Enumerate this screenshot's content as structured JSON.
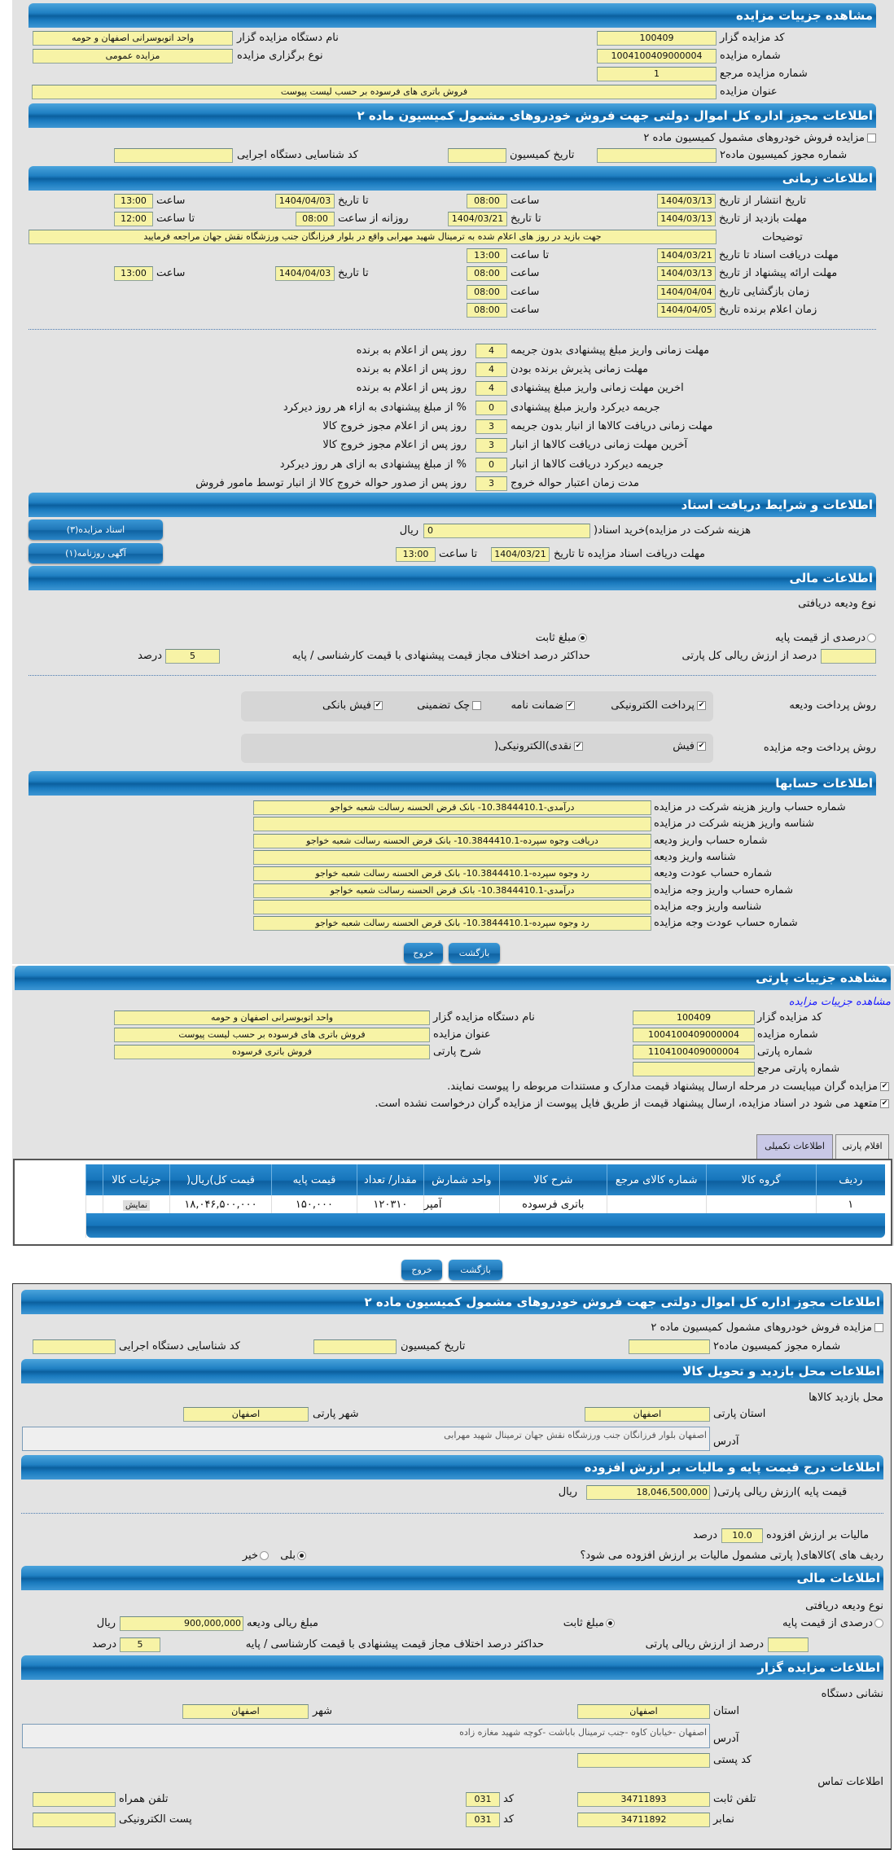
{
  "auction": {
    "title": "مشاهده جزییات مزایده",
    "code_label": "کد مزایده گزار",
    "code": "100409",
    "org_label": "نام دستگاه مزایده گزار",
    "org": "واحد اتوبوسرانی اصفهان و حومه",
    "number_label": "شماره مزایده",
    "number": "1004100409000004",
    "type_label": "نوع برگزاری مزایده",
    "type": "مزایده عمومی",
    "ref_label": "شماره مزایده مرجع",
    "ref": "1",
    "subject_label": "عنوان مزایده",
    "subject": "فروش باتری های فرسوده بر حسب لیست پیوست"
  },
  "permit": {
    "title": "اطلاعات مجوز اداره کل اموال دولتی جهت فروش خودروهای مشمول کمیسیون ماده ۲",
    "checkbox_label": "مزایده فروش خودروهای مشمول کمیسیون ماده ۲",
    "checked": false,
    "permit_no_label": "شماره مجوز کمیسیون ماده۲",
    "permit_no": "",
    "commission_date_label": "تاریخ کمیسیون",
    "commission_date": "",
    "exec_code_label": "کد شناسایی دستگاه اجرایی",
    "exec_code": ""
  },
  "timing": {
    "title": "اطلاعات زمانی",
    "publish": {
      "label": "تاریخ انتشار  از تاریخ",
      "from": "1404/03/13",
      "time_label": "ساعت",
      "from_time": "08:00",
      "to_label": "تا تاریخ",
      "to": "1404/04/03",
      "to_time_label": "ساعت",
      "to_time": "13:00"
    },
    "visit": {
      "label": "مهلت بازدید  از تاریخ",
      "from": "1404/03/13",
      "to_label": "تا تاریخ",
      "to": "1404/03/21",
      "daily_label": "روزانه از ساعت",
      "daily_from": "08:00",
      "until_label": "تا ساعت",
      "until": "12:00"
    },
    "desc_label": "توضیحات",
    "desc": "جهت بازید در روز های اعلام شده به ترمینال شهید مهرابی واقع در بلوار فرزانگان جنب ورزشگاه نقش جهان مراجعه فرمایید",
    "docs": {
      "label": "مهلت دریافت اسناد  تا تاریخ",
      "date": "1404/03/21",
      "time_label": "تا ساعت",
      "time": "13:00"
    },
    "offer": {
      "label": "مهلت ارائه پیشنهاد  از تاریخ",
      "from": "1404/03/13",
      "time_label": "ساعت",
      "from_time": "08:00",
      "to_label": "تا تاریخ",
      "to": "1404/04/03",
      "to_time_label": "ساعت",
      "to_time": "13:00"
    },
    "opening": {
      "label": "زمان بازگشایی    تاریخ",
      "date": "1404/04/04",
      "time_label": "ساعت",
      "time": "08:00"
    },
    "winner": {
      "label": "زمان اعلام برنده    تاریخ",
      "date": "1404/04/05",
      "time_label": "ساعت",
      "time": "08:00"
    }
  },
  "deadlines": [
    {
      "label": "مهلت زمانی واریز مبلغ پیشنهادی بدون جریمه",
      "value": "4",
      "suffix": "روز پس از اعلام به برنده"
    },
    {
      "label": "مهلت زمانی پذیرش برنده بودن",
      "value": "4",
      "suffix": "روز پس از اعلام به برنده"
    },
    {
      "label": "اخرین مهلت زمانی واریز مبلغ پیشنهادی",
      "value": "4",
      "suffix": "روز پس از اعلام به برنده"
    },
    {
      "label": "جریمه دیرکرد واریز مبلغ پیشنهادی",
      "value": "0",
      "suffix": "% از مبلغ پیشنهادی به ازاء هر روز دیرکرد"
    },
    {
      "label": "مهلت زمانی دریافت کالاها از انبار بدون جریمه",
      "value": "3",
      "suffix": "روز پس از اعلام مجوز خروج کالا"
    },
    {
      "label": "آخرین مهلت زمانی دریافت کالاها از انبار",
      "value": "3",
      "suffix": "روز پس از اعلام مجوز خروج کالا"
    },
    {
      "label": "جریمه دیرکرد دریافت کالاها از انبار",
      "value": "0",
      "suffix": "% از مبلغ پیشنهادی به ازای هر روز دیرکرد"
    },
    {
      "label": "مدت زمان اعتبار حواله خروج",
      "value": "3",
      "suffix": "روز پس از صدور حواله خروج کالا از انبار توسط مامور فروش"
    }
  ],
  "documents": {
    "title": "اطلاعات و شرایط دریافت اسناد",
    "fee_label": "هزینه شرکت در مزایده)خرید اسناد(",
    "fee": "0",
    "currency": "ریال",
    "deadline_label": "مهلت دریافت اسناد مزایده تا تاریخ",
    "deadline_date": "1404/03/21",
    "time_label": "تا ساعت",
    "deadline_time": "13:00",
    "docs_button": "اسناد مزایده(۳)",
    "ad_button": "آگهی روزنامه(۱)"
  },
  "finance": {
    "title": "اطلاعات مالی",
    "deposit_type_label": "نوع ودیعه دریافتی",
    "percent_option": "درصدی از قیمت پایه",
    "fixed_option": "مبلغ ثابت",
    "selected": "fixed",
    "percent_value": "",
    "percent_suffix": "درصد از ارزش ریالی کل پارتی",
    "max_diff_label": "حداکثر درصد اختلاف مجاز قیمت پیشنهادی با قیمت کارشناسی / پایه",
    "max_diff": "5",
    "percent_unit": "درصد",
    "deposit_method_label": "روش پرداخت ودیعه",
    "deposit_methods": [
      {
        "label": "پرداخت الکترونیکی",
        "checked": true
      },
      {
        "label": "ضمانت نامه",
        "checked": true
      },
      {
        "label": "چک تضمینی",
        "checked": false
      },
      {
        "label": "فیش بانکی",
        "checked": true
      }
    ],
    "payment_method_label": "روش پرداخت وجه مزایده",
    "payment_methods": [
      {
        "label": "فیش",
        "checked": true
      },
      {
        "label": "نقدی)الکترونیکی(",
        "checked": true
      }
    ]
  },
  "accounts": {
    "title": "اطلاعات حسابها",
    "rows": [
      {
        "label": "شماره حساب واریز هزینه شرکت در مزایده",
        "value": "درآمدی-10.3844410.1- بانک قرض الحسنه رسالت شعبه خواجو"
      },
      {
        "label": "شناسه واریز هزینه شرکت در مزایده",
        "value": ""
      },
      {
        "label": "شماره حساب واریز ودیعه",
        "value": "دریافت وجوه سپرده-10.3844410.1- بانک قرض الحسنه رسالت شعبه خواجو"
      },
      {
        "label": "شناسه واریز ودیعه",
        "value": ""
      },
      {
        "label": "شماره حساب عودت ودیعه",
        "value": "رد وجوه سپرده-10.3844410.1- بانک قرض الحسنه رسالت شعبه خواجو"
      },
      {
        "label": "شماره حساب واریز وجه مزایده",
        "value": "درآمدی-10.3844410.1- بانک قرض الحسنه رسالت شعبه خواجو"
      },
      {
        "label": "شناسه واریز وجه مزایده",
        "value": ""
      },
      {
        "label": "شماره حساب عودت وجه مزایده",
        "value": "رد وجوه سپرده-10.3844410.1- بانک قرض الحسنه رسالت شعبه خواجو"
      }
    ]
  },
  "buttons": {
    "back": "بازگشت",
    "exit": "خروج"
  },
  "party": {
    "title": "مشاهده جزییات پارتی",
    "link": "مشاهده جزییات مزایده",
    "code_label": "کد مزایده گزار",
    "code": "100409",
    "number_label": "شماره مزایده",
    "number": "1004100409000004",
    "party_no_label": "شماره پارتی",
    "party_no": "1104100409000004",
    "party_ref_label": "شماره پارتی مرجع",
    "party_ref": "",
    "org_label": "نام دستگاه مزایده گزار",
    "org": "واحد اتوبوسرانی اصفهان و حومه",
    "subject_label": "عنوان مزایده",
    "subject": "فروش باتری های فرسوده بر حسب لیست پیوست",
    "desc_label": "شرح پارتی",
    "desc": "فروش باتری فرسوده",
    "notice1": "مزایده گران میبایست در مرحله ارسال پیشنهاد قیمت مدارک و مستندات مربوطه را پیوست نمایند.",
    "notice2": "متعهد می شود در اسناد مزایده، ارسال پیشنهاد قیمت از طریق فایل پیوست از مزایده گران درخواست نشده است.",
    "tabs": [
      {
        "label": "اقلام پارتی",
        "active": false
      },
      {
        "label": "اطلاعات تکمیلی",
        "active": true
      }
    ],
    "table": {
      "headers": [
        "ردیف",
        "گروه کالا",
        "شماره کالای مرجع",
        "شرح کالا",
        "واحد شمارش",
        "مقدار/ تعداد",
        "قیمت پایه",
        "قیمت کل)ریال(",
        "جزئیات کالا",
        ""
      ],
      "rows": [
        [
          "۱",
          "",
          "",
          "باتری فرسوده",
          "آمپر",
          "۱۲۰۳۱۰",
          "۱۵۰,۰۰۰",
          "۱۸,۰۴۶,۵۰۰,۰۰۰",
          "نمایش",
          ""
        ]
      ]
    }
  },
  "permit2": {
    "title": "اطلاعات مجوز اداره کل اموال دولتی جهت فروش خودروهای مشمول کمیسیون ماده ۲",
    "checkbox_label": "مزایده فروش خودروهای مشمول کمیسیون ماده ۲",
    "permit_no_label": "شماره مجوز کمیسیون ماده۲",
    "commission_date_label": "تاریخ کمیسیون",
    "exec_code_label": "کد شناسایی دستگاه اجرایی"
  },
  "visit_place": {
    "title": "اطلاعات محل بازدید و تحویل کالا",
    "subtitle": "محل بازدید کالاها",
    "province_label": "استان پارتی",
    "province": "اصفهان",
    "city_label": "شهر پارتی",
    "city": "اصفهان",
    "address_label": "آدرس",
    "address": "اصفهان بلوار فرزانگان جنب ورزشگاه نقش جهان ترمینال شهید مهرابی"
  },
  "pricing": {
    "title": "اطلاعات درج قیمت پایه و مالیات بر ارزش افزوده",
    "base_label": "قیمت پایه )ارزش ریالی پارتی(",
    "base": "18,046,500,000",
    "currency": "ریال",
    "vat_label": "مالیات بر ارزش افزوده",
    "vat": "10.0",
    "vat_unit": "درصد",
    "vat_question": "ردیف های )کالاهای( پارتی مشمول مالیات بر ارزش افزوده می شود؟",
    "yes": "بلی",
    "no": "خیر",
    "vat_selected": "yes"
  },
  "finance2": {
    "title": "اطلاعات مالی",
    "deposit_type_label": "نوع ودیعه دریافتی",
    "percent_option": "درصدی از قیمت پایه",
    "fixed_option": "مبلغ ثابت",
    "amount_label": "مبلغ ریالی ودیعه",
    "amount": "900,000,000",
    "currency": "ریال",
    "percent_suffix": "درصد از ارزش ریالی پارتی",
    "max_diff_label": "حداکثر درصد اختلاف مجاز قیمت پیشنهادی با قیمت کارشناسی / پایه",
    "max_diff": "5",
    "percent_unit": "درصد"
  },
  "auctioneer": {
    "title": "اطلاعات مزایده گزار",
    "address_title": "نشانی دستگاه",
    "province_label": "استان",
    "province": "اصفهان",
    "city_label": "شهر",
    "city": "اصفهان",
    "address_label": "آدرس",
    "address": "اصفهان -خیابان کاوه -جنب ترمینال باباشت -کوچه شهید مغازه زاده",
    "postal_label": "کد پستی",
    "postal": "",
    "contact_title": "اطلاعات تماس",
    "phone_label": "تلفن ثابت",
    "phone": "34711893",
    "code_label": "کد",
    "phone_code": "031",
    "mobile_label": "تلفن همراه",
    "mobile": "",
    "fax_label": "نمابر",
    "fax": "34711892",
    "fax_code": "031",
    "email_label": "پست الکترونیکی",
    "email": ""
  },
  "colors": {
    "header": "#1675bb",
    "field": "#f7f3a6",
    "panel": "#e3e3e3",
    "link": "#1a1aff"
  }
}
